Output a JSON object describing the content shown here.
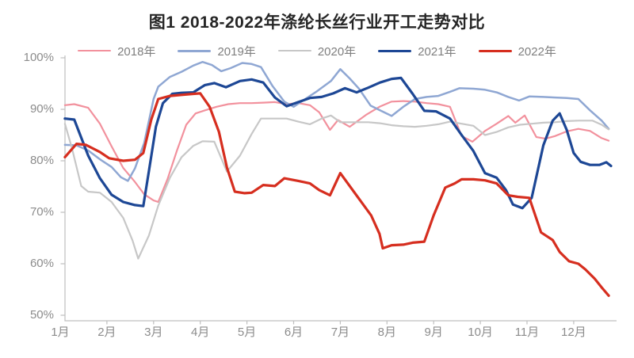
{
  "chart_data": {
    "type": "line",
    "title": "图1 2018-2022年涤纶长丝行业开工走势对比",
    "unit": "%",
    "grid": false,
    "legend_position": "top",
    "x_axis": {
      "labels": [
        "1月",
        "2月",
        "3月",
        "4月",
        "5月",
        "6月",
        "7月",
        "8月",
        "9月",
        "10月",
        "11月",
        "12月"
      ],
      "range_months": [
        1,
        12.8
      ]
    },
    "y_axis": {
      "labels": [
        "100%",
        "90%",
        "80%",
        "70%",
        "60%",
        "50%"
      ],
      "order": "top_to_bottom",
      "min": 50,
      "max": 100
    },
    "axis_color": "#bfbfbf",
    "label_color": "#8c8c8c",
    "series": [
      {
        "name": "2018年",
        "color": "#f2919d",
        "width": 2.2,
        "points": [
          [
            1.1,
            90.8
          ],
          [
            1.3,
            91.0
          ],
          [
            1.6,
            90.3
          ],
          [
            1.85,
            87.2
          ],
          [
            2.1,
            82.8
          ],
          [
            2.35,
            78.6
          ],
          [
            2.6,
            75.9
          ],
          [
            2.8,
            73.5
          ],
          [
            3.0,
            72.3
          ],
          [
            3.1,
            72.0
          ],
          [
            3.3,
            76.5
          ],
          [
            3.5,
            82.0
          ],
          [
            3.7,
            87.0
          ],
          [
            3.9,
            89.2
          ],
          [
            4.1,
            89.8
          ],
          [
            4.35,
            90.5
          ],
          [
            4.6,
            91.0
          ],
          [
            4.85,
            91.2
          ],
          [
            5.1,
            91.2
          ],
          [
            5.35,
            91.3
          ],
          [
            5.6,
            91.4
          ],
          [
            5.85,
            91.0
          ],
          [
            6.1,
            91.2
          ],
          [
            6.35,
            90.8
          ],
          [
            6.55,
            89.4
          ],
          [
            6.78,
            86.0
          ],
          [
            6.95,
            87.9
          ],
          [
            7.2,
            86.6
          ],
          [
            7.55,
            88.9
          ],
          [
            7.84,
            90.5
          ],
          [
            8.1,
            91.5
          ],
          [
            8.35,
            91.6
          ],
          [
            8.6,
            91.5
          ],
          [
            8.85,
            91.2
          ],
          [
            9.1,
            91.0
          ],
          [
            9.35,
            90.5
          ],
          [
            9.6,
            84.8
          ],
          [
            9.83,
            83.7
          ],
          [
            10.1,
            85.8
          ],
          [
            10.35,
            87.2
          ],
          [
            10.6,
            88.7
          ],
          [
            10.75,
            87.4
          ],
          [
            10.95,
            88.8
          ],
          [
            11.2,
            84.6
          ],
          [
            11.4,
            84.3
          ],
          [
            11.6,
            84.8
          ],
          [
            11.85,
            85.7
          ],
          [
            12.1,
            86.2
          ],
          [
            12.35,
            85.8
          ],
          [
            12.6,
            84.4
          ],
          [
            12.75,
            83.9
          ]
        ]
      },
      {
        "name": "2019年",
        "color": "#8fa7d3",
        "width": 2.5,
        "points": [
          [
            1.1,
            83.1
          ],
          [
            1.35,
            83.0
          ],
          [
            1.6,
            82.0
          ],
          [
            1.85,
            80.3
          ],
          [
            2.1,
            78.8
          ],
          [
            2.3,
            76.8
          ],
          [
            2.45,
            76.1
          ],
          [
            2.6,
            78.5
          ],
          [
            2.8,
            83.5
          ],
          [
            3.0,
            92.0
          ],
          [
            3.1,
            94.4
          ],
          [
            3.35,
            96.3
          ],
          [
            3.6,
            97.3
          ],
          [
            3.85,
            98.5
          ],
          [
            4.05,
            99.2
          ],
          [
            4.25,
            98.6
          ],
          [
            4.45,
            97.4
          ],
          [
            4.65,
            98.0
          ],
          [
            4.9,
            99.0
          ],
          [
            5.1,
            98.8
          ],
          [
            5.3,
            98.2
          ],
          [
            5.55,
            94.5
          ],
          [
            5.8,
            91.5
          ],
          [
            6.0,
            90.5
          ],
          [
            6.25,
            92.0
          ],
          [
            6.5,
            93.5
          ],
          [
            6.8,
            95.5
          ],
          [
            7.0,
            97.8
          ],
          [
            7.2,
            96.0
          ],
          [
            7.4,
            94.0
          ],
          [
            7.65,
            90.7
          ],
          [
            7.85,
            89.8
          ],
          [
            8.1,
            88.7
          ],
          [
            8.35,
            90.5
          ],
          [
            8.6,
            92.0
          ],
          [
            8.85,
            92.4
          ],
          [
            9.1,
            92.6
          ],
          [
            9.35,
            93.4
          ],
          [
            9.55,
            94.1
          ],
          [
            9.85,
            94.0
          ],
          [
            10.1,
            93.8
          ],
          [
            10.35,
            93.3
          ],
          [
            10.6,
            92.4
          ],
          [
            10.83,
            91.7
          ],
          [
            11.05,
            92.5
          ],
          [
            11.35,
            92.4
          ],
          [
            11.6,
            92.3
          ],
          [
            11.85,
            92.2
          ],
          [
            12.1,
            92.0
          ],
          [
            12.35,
            89.8
          ],
          [
            12.6,
            87.8
          ],
          [
            12.75,
            86.2
          ]
        ]
      },
      {
        "name": "2020年",
        "color": "#c7c7c7",
        "width": 2.2,
        "points": [
          [
            1.1,
            87.2
          ],
          [
            1.25,
            82.5
          ],
          [
            1.45,
            75.1
          ],
          [
            1.6,
            74.0
          ],
          [
            1.85,
            73.8
          ],
          [
            2.1,
            72.0
          ],
          [
            2.35,
            68.9
          ],
          [
            2.55,
            64.5
          ],
          [
            2.67,
            61.0
          ],
          [
            2.9,
            65.5
          ],
          [
            3.1,
            71.3
          ],
          [
            3.35,
            76.7
          ],
          [
            3.6,
            80.7
          ],
          [
            3.85,
            82.9
          ],
          [
            4.05,
            83.8
          ],
          [
            4.3,
            83.7
          ],
          [
            4.57,
            77.9
          ],
          [
            4.85,
            81.0
          ],
          [
            5.1,
            85.2
          ],
          [
            5.3,
            88.2
          ],
          [
            5.6,
            88.2
          ],
          [
            5.85,
            88.2
          ],
          [
            6.1,
            87.6
          ],
          [
            6.35,
            87.1
          ],
          [
            6.6,
            88.2
          ],
          [
            6.8,
            88.8
          ],
          [
            7.0,
            87.5
          ],
          [
            7.3,
            87.5
          ],
          [
            7.6,
            87.5
          ],
          [
            7.85,
            87.3
          ],
          [
            8.1,
            86.9
          ],
          [
            8.35,
            86.7
          ],
          [
            8.6,
            86.6
          ],
          [
            8.85,
            86.8
          ],
          [
            9.1,
            87.1
          ],
          [
            9.35,
            87.6
          ],
          [
            9.6,
            87.2
          ],
          [
            9.85,
            86.8
          ],
          [
            10.1,
            85.0
          ],
          [
            10.35,
            85.6
          ],
          [
            10.6,
            86.5
          ],
          [
            10.85,
            87.0
          ],
          [
            11.1,
            87.2
          ],
          [
            11.35,
            87.4
          ],
          [
            11.6,
            87.5
          ],
          [
            11.85,
            87.7
          ],
          [
            12.1,
            87.8
          ],
          [
            12.4,
            87.8
          ],
          [
            12.6,
            87.0
          ],
          [
            12.75,
            86.1
          ]
        ]
      },
      {
        "name": "2021年",
        "color": "#1d4795",
        "width": 3.2,
        "points": [
          [
            1.1,
            88.2
          ],
          [
            1.3,
            88.0
          ],
          [
            1.6,
            81.0
          ],
          [
            1.85,
            76.6
          ],
          [
            2.1,
            73.4
          ],
          [
            2.35,
            72.0
          ],
          [
            2.6,
            71.4
          ],
          [
            2.78,
            71.2
          ],
          [
            2.9,
            78.0
          ],
          [
            3.05,
            86.6
          ],
          [
            3.2,
            91.2
          ],
          [
            3.4,
            93.0
          ],
          [
            3.6,
            93.2
          ],
          [
            3.85,
            93.3
          ],
          [
            4.1,
            94.7
          ],
          [
            4.3,
            95.1
          ],
          [
            4.55,
            94.3
          ],
          [
            4.85,
            95.5
          ],
          [
            5.1,
            95.8
          ],
          [
            5.35,
            95.2
          ],
          [
            5.6,
            92.3
          ],
          [
            5.85,
            90.6
          ],
          [
            6.1,
            91.4
          ],
          [
            6.35,
            92.2
          ],
          [
            6.6,
            92.4
          ],
          [
            6.85,
            93.1
          ],
          [
            7.1,
            94.1
          ],
          [
            7.35,
            93.3
          ],
          [
            7.6,
            94.2
          ],
          [
            7.85,
            95.2
          ],
          [
            8.1,
            95.9
          ],
          [
            8.3,
            96.1
          ],
          [
            8.55,
            93.0
          ],
          [
            8.8,
            89.7
          ],
          [
            9.05,
            89.6
          ],
          [
            9.35,
            88.2
          ],
          [
            9.6,
            85.0
          ],
          [
            9.85,
            81.9
          ],
          [
            10.1,
            77.6
          ],
          [
            10.35,
            76.7
          ],
          [
            10.55,
            74.3
          ],
          [
            10.7,
            71.5
          ],
          [
            10.9,
            70.8
          ],
          [
            11.1,
            72.8
          ],
          [
            11.35,
            83.0
          ],
          [
            11.55,
            87.8
          ],
          [
            11.7,
            89.2
          ],
          [
            11.85,
            86.0
          ],
          [
            12.0,
            81.5
          ],
          [
            12.15,
            79.8
          ],
          [
            12.35,
            79.2
          ],
          [
            12.55,
            79.2
          ],
          [
            12.7,
            79.7
          ],
          [
            12.8,
            79.0
          ]
        ]
      },
      {
        "name": "2022年",
        "color": "#d62e1f",
        "width": 3.2,
        "points": [
          [
            1.1,
            80.7
          ],
          [
            1.35,
            83.3
          ],
          [
            1.55,
            83.1
          ],
          [
            1.85,
            81.7
          ],
          [
            2.05,
            80.5
          ],
          [
            2.35,
            80.0
          ],
          [
            2.6,
            80.2
          ],
          [
            2.78,
            81.5
          ],
          [
            2.95,
            88.0
          ],
          [
            3.1,
            92.0
          ],
          [
            3.35,
            92.6
          ],
          [
            3.6,
            92.8
          ],
          [
            3.85,
            93.0
          ],
          [
            4.0,
            93.1
          ],
          [
            4.2,
            90.5
          ],
          [
            4.4,
            85.6
          ],
          [
            4.57,
            78.7
          ],
          [
            4.74,
            74.0
          ],
          [
            4.95,
            73.7
          ],
          [
            5.1,
            73.8
          ],
          [
            5.35,
            75.3
          ],
          [
            5.6,
            75.1
          ],
          [
            5.8,
            76.6
          ],
          [
            6.1,
            76.1
          ],
          [
            6.35,
            75.6
          ],
          [
            6.55,
            74.3
          ],
          [
            6.78,
            73.3
          ],
          [
            7.0,
            77.6
          ],
          [
            7.37,
            73.0
          ],
          [
            7.66,
            69.4
          ],
          [
            7.84,
            65.8
          ],
          [
            7.91,
            63.0
          ],
          [
            8.1,
            63.6
          ],
          [
            8.35,
            63.7
          ],
          [
            8.55,
            64.1
          ],
          [
            8.8,
            64.3
          ],
          [
            9.0,
            69.4
          ],
          [
            9.25,
            74.8
          ],
          [
            9.45,
            75.6
          ],
          [
            9.6,
            76.4
          ],
          [
            9.85,
            76.4
          ],
          [
            10.1,
            76.2
          ],
          [
            10.35,
            75.6
          ],
          [
            10.6,
            73.3
          ],
          [
            10.8,
            73.0
          ],
          [
            11.05,
            72.8
          ],
          [
            11.3,
            66.1
          ],
          [
            11.55,
            64.6
          ],
          [
            11.7,
            62.3
          ],
          [
            11.9,
            60.5
          ],
          [
            12.1,
            60.0
          ],
          [
            12.25,
            58.9
          ],
          [
            12.45,
            57.1
          ],
          [
            12.6,
            55.4
          ],
          [
            12.75,
            53.8
          ]
        ]
      }
    ]
  }
}
